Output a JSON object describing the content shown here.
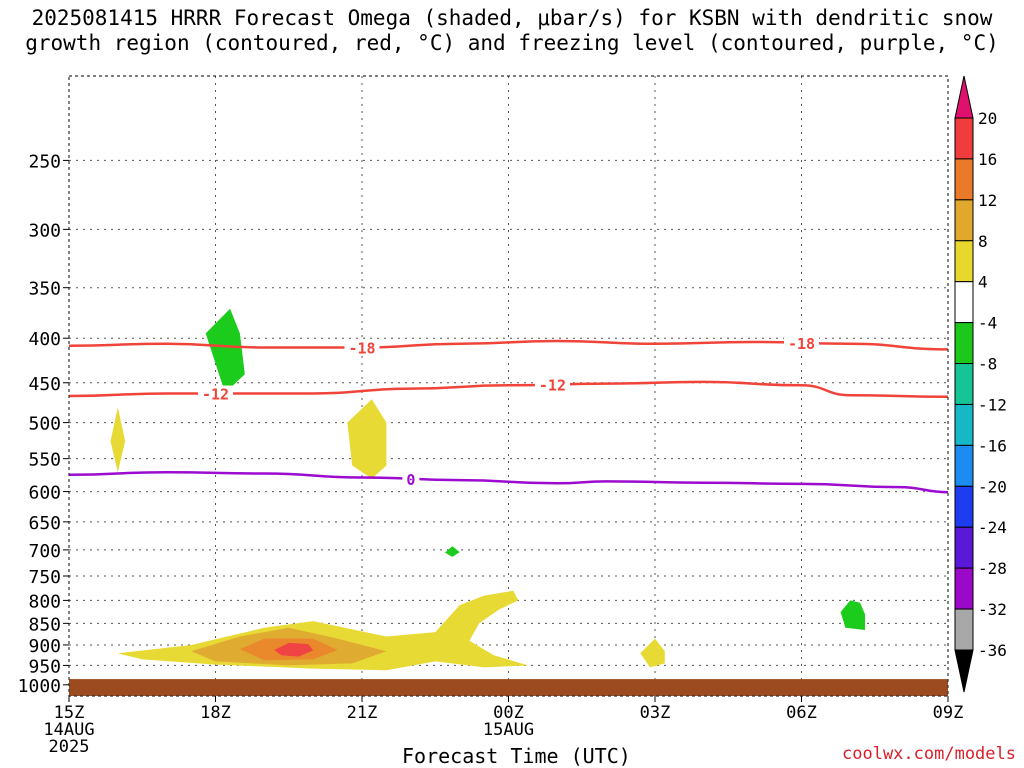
{
  "title_line1": "2025081415 HRRR Forecast Omega (shaded, μbar/s) for KSBN with dendritic snow",
  "title_line2": "growth region (contoured, red, °C) and freezing level (contoured, purple, °C)",
  "credit": "coolwx.com/models",
  "chart_data": {
    "type": "contour",
    "xlabel": "Forecast Time (UTC)",
    "ylabel": "",
    "x_ticks": [
      {
        "hour": 0,
        "lines": [
          "15Z",
          "14AUG",
          "2025"
        ]
      },
      {
        "hour": 3,
        "lines": [
          "18Z"
        ]
      },
      {
        "hour": 6,
        "lines": [
          "21Z"
        ]
      },
      {
        "hour": 9,
        "lines": [
          "00Z",
          "15AUG"
        ]
      },
      {
        "hour": 12,
        "lines": [
          "03Z"
        ]
      },
      {
        "hour": 15,
        "lines": [
          "06Z"
        ]
      },
      {
        "hour": 18,
        "lines": [
          "09Z"
        ]
      }
    ],
    "xlim": [
      0,
      18
    ],
    "y_ticks": [
      250,
      300,
      350,
      400,
      450,
      500,
      550,
      600,
      650,
      700,
      750,
      800,
      850,
      900,
      950,
      1000
    ],
    "ylim_hPa": [
      200,
      1030
    ],
    "ground_level_hPa": 985,
    "ground_color": "#9c4a1f",
    "contours": [
      {
        "label": "-18",
        "color": "#f0443a",
        "label_x": [
          6.0,
          15.0
        ],
        "points": [
          [
            0,
            408
          ],
          [
            2,
            406
          ],
          [
            4,
            410
          ],
          [
            6,
            410
          ],
          [
            8,
            406
          ],
          [
            10,
            403
          ],
          [
            12,
            406
          ],
          [
            14,
            404
          ],
          [
            16,
            406
          ],
          [
            18,
            412
          ]
        ]
      },
      {
        "label": "-12",
        "color": "#f0443a",
        "label_x": [
          3.0,
          9.9
        ],
        "points": [
          [
            0,
            466
          ],
          [
            2,
            463
          ],
          [
            3,
            463
          ],
          [
            5,
            463
          ],
          [
            7,
            457
          ],
          [
            9,
            453
          ],
          [
            11,
            451
          ],
          [
            13,
            449
          ],
          [
            15,
            453
          ],
          [
            16,
            465
          ],
          [
            18,
            467
          ]
        ]
      },
      {
        "label": "0",
        "color": "#9b0bd0",
        "label_x": [
          7.0
        ],
        "points": [
          [
            0,
            574
          ],
          [
            2,
            570
          ],
          [
            4,
            572
          ],
          [
            6,
            578
          ],
          [
            8,
            582
          ],
          [
            10,
            587
          ],
          [
            11,
            584
          ],
          [
            13,
            586
          ],
          [
            15,
            588
          ],
          [
            17,
            593
          ],
          [
            18,
            601
          ]
        ]
      }
    ],
    "omega_regions": [
      {
        "level": "-8 to -4",
        "color": "#1ccc1c",
        "points": [
          [
            3.3,
            370
          ],
          [
            2.8,
            395
          ],
          [
            3.1,
            445
          ],
          [
            3.2,
            462
          ],
          [
            3.6,
            440
          ],
          [
            3.5,
            395
          ]
        ]
      },
      {
        "level": "-8 to -4",
        "color": "#1ccc1c",
        "points": [
          [
            7.85,
            693
          ],
          [
            7.7,
            705
          ],
          [
            7.85,
            713
          ],
          [
            8.0,
            704
          ]
        ]
      },
      {
        "level": "-8 to -4",
        "color": "#1ccc1c",
        "points": [
          [
            16.0,
            800
          ],
          [
            15.8,
            825
          ],
          [
            15.9,
            860
          ],
          [
            16.3,
            865
          ],
          [
            16.3,
            830
          ],
          [
            16.2,
            805
          ]
        ]
      },
      {
        "level": "4 to 8",
        "color": "#e8da34",
        "points": [
          [
            1.0,
            480
          ],
          [
            0.85,
            525
          ],
          [
            1.0,
            570
          ],
          [
            1.15,
            525
          ]
        ]
      },
      {
        "level": "4 to 8",
        "color": "#e8da34",
        "points": [
          [
            6.2,
            470
          ],
          [
            5.7,
            500
          ],
          [
            5.8,
            560
          ],
          [
            6.2,
            580
          ],
          [
            6.5,
            560
          ],
          [
            6.5,
            500
          ]
        ]
      },
      {
        "level": "4 to 8",
        "color": "#e8da34",
        "points": [
          [
            12.0,
            885
          ],
          [
            11.7,
            920
          ],
          [
            11.9,
            955
          ],
          [
            12.2,
            945
          ],
          [
            12.2,
            915
          ]
        ]
      },
      {
        "level": "4 to 8",
        "color": "#e8da34",
        "points": [
          [
            1.0,
            920
          ],
          [
            2.5,
            900
          ],
          [
            4.0,
            860
          ],
          [
            5.0,
            845
          ],
          [
            6.5,
            880
          ],
          [
            7.5,
            870
          ],
          [
            8.0,
            810
          ],
          [
            8.5,
            790
          ],
          [
            9.1,
            780
          ],
          [
            9.2,
            800
          ],
          [
            8.8,
            820
          ],
          [
            8.4,
            850
          ],
          [
            8.2,
            890
          ],
          [
            8.7,
            925
          ],
          [
            9.4,
            950
          ],
          [
            8.5,
            955
          ],
          [
            7.5,
            940
          ],
          [
            6.5,
            962
          ],
          [
            5.0,
            958
          ],
          [
            3.0,
            948
          ],
          [
            1.5,
            935
          ]
        ]
      },
      {
        "level": "8 to 12",
        "color": "#e0ab31",
        "points": [
          [
            2.5,
            915
          ],
          [
            3.5,
            880
          ],
          [
            4.5,
            860
          ],
          [
            5.5,
            885
          ],
          [
            6.5,
            915
          ],
          [
            5.8,
            945
          ],
          [
            4.5,
            950
          ],
          [
            3.0,
            940
          ]
        ]
      },
      {
        "level": "12 to 16",
        "color": "#ea882c",
        "points": [
          [
            3.5,
            910
          ],
          [
            4.0,
            885
          ],
          [
            5.0,
            885
          ],
          [
            5.5,
            912
          ],
          [
            5.0,
            935
          ],
          [
            4.0,
            937
          ]
        ]
      },
      {
        "level": "16 to 20",
        "color": "#f04444",
        "points": [
          [
            4.2,
            912
          ],
          [
            4.5,
            895
          ],
          [
            4.9,
            898
          ],
          [
            5.0,
            913
          ],
          [
            4.7,
            928
          ],
          [
            4.35,
            925
          ]
        ]
      }
    ],
    "colorbar": {
      "top_label": "20",
      "labels": [
        "20",
        "16",
        "12",
        "8",
        "4",
        "-4",
        "-8",
        "-12",
        "-16",
        "-20",
        "-24",
        "-28",
        "-32",
        "-36"
      ],
      "colors": [
        "#f03c3c",
        "#ea7a2a",
        "#e0a92e",
        "#e8d82e",
        "#ffffff",
        "#1cc81c",
        "#17c496",
        "#16b8c8",
        "#1c8cf0",
        "#1e3cf0",
        "#5a18d8",
        "#9a08c8",
        "#a8a8a8"
      ],
      "top_cap_color": "#e0106e",
      "bottom_cap_color": "#000000"
    }
  }
}
